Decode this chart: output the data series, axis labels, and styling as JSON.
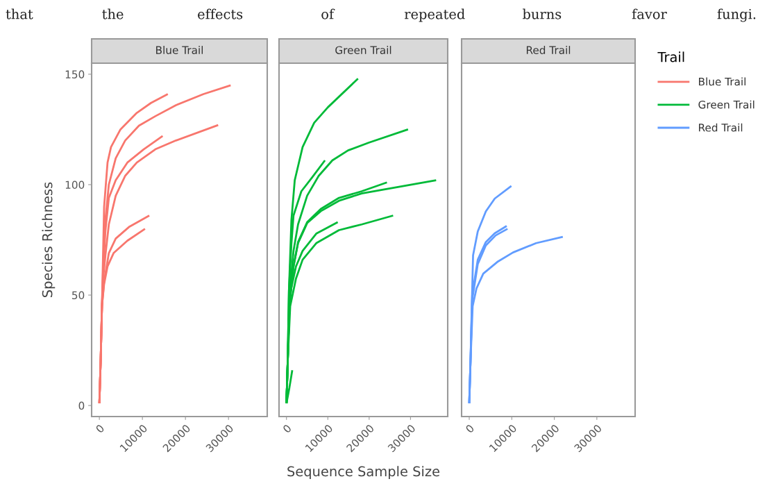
{
  "chart_data": [
    {
      "type": "line",
      "title": "Blue Trail",
      "ylabel": "Species Richness",
      "annotations": [
        "that the effects of repeated burns favor fungi."
      ],
      "xlim": [
        -1800,
        39000
      ],
      "ylim": [
        -5,
        155
      ],
      "xticks": [
        0,
        10000,
        20000,
        30000
      ],
      "yticks": [
        0,
        50,
        100,
        150
      ],
      "series": [
        {
          "name": "Blue Trail",
          "color": "#f8766d",
          "x": [
            0,
            300,
            600,
            1100,
            1900,
            2700,
            4900,
            8700,
            12000,
            15900
          ],
          "values": [
            1,
            20,
            45,
            90,
            110,
            117,
            125,
            132.5,
            137,
            141
          ]
        },
        {
          "color": "#f8766d",
          "x": [
            0,
            300,
            600,
            1000,
            1400,
            2200,
            3800,
            6000,
            9200,
            13000,
            17800,
            24200,
            30500
          ],
          "values": [
            1,
            20,
            45,
            70,
            84,
            100,
            112,
            120,
            126.7,
            131,
            136,
            141,
            145
          ]
        },
        {
          "color": "#f8766d",
          "x": [
            0,
            300,
            600,
            1000,
            1400,
            2200,
            3800,
            6000,
            8700,
            13000,
            17800,
            27600
          ],
          "values": [
            1,
            20,
            45,
            60,
            68,
            82,
            95,
            104,
            110,
            116,
            120,
            127
          ]
        },
        {
          "color": "#f8766d",
          "x": [
            0,
            300,
            600,
            1000,
            1400,
            2200,
            3800,
            6500,
            10300,
            14700
          ],
          "values": [
            1,
            20,
            45,
            65,
            79,
            94,
            102,
            110,
            116,
            122
          ]
        },
        {
          "color": "#f8766d",
          "x": [
            0,
            300,
            600,
            1100,
            2200,
            3800,
            7000,
            11600
          ],
          "values": [
            1,
            20,
            45,
            56,
            69,
            75.6,
            81,
            86
          ]
        },
        {
          "color": "#f8766d",
          "x": [
            0,
            300,
            600,
            1100,
            1900,
            3300,
            6500,
            10600
          ],
          "values": [
            1,
            20,
            45,
            55,
            63,
            69,
            74.6,
            80
          ]
        }
      ]
    },
    {
      "type": "line",
      "title": "Green Trail",
      "xlabel": "Sequence Sample Size",
      "tick_labels": "x",
      "xlim": [
        -1800,
        39000
      ],
      "ylim": [
        -5,
        155
      ],
      "xticks": [
        0,
        10000,
        20000,
        30000
      ],
      "yticks": [
        0,
        50,
        100,
        150
      ],
      "series": [
        {
          "name": "Green Trail",
          "color": "#00ba38",
          "x": [
            0,
            300,
            600,
            1200,
            2000,
            3900,
            6700,
            10000,
            17300
          ],
          "values": [
            1,
            20,
            52,
            84,
            102,
            117,
            128,
            135,
            148
          ]
        },
        {
          "color": "#00ba38",
          "x": [
            0,
            300,
            700,
            1700,
            2800,
            5000,
            7800,
            11100,
            14900,
            19900,
            29400
          ],
          "values": [
            1,
            20,
            50,
            70,
            82,
            95,
            104,
            111,
            115.5,
            119,
            125
          ]
        },
        {
          "color": "#00ba38",
          "x": [
            0,
            300,
            600,
            1200,
            1700,
            3600,
            6100,
            9300
          ],
          "values": [
            1,
            20,
            52,
            73.5,
            86,
            97,
            103,
            111
          ]
        },
        {
          "color": "#00ba38",
          "x": [
            0,
            300,
            700,
            1700,
            2800,
            5000,
            8300,
            12700,
            18200,
            36200
          ],
          "values": [
            1,
            20,
            45,
            63,
            73.5,
            82.6,
            88,
            92.7,
            96,
            102
          ]
        },
        {
          "color": "#00ba38",
          "x": [
            0,
            300,
            700,
            1700,
            2800,
            5000,
            8300,
            12700,
            18200,
            24300
          ],
          "values": [
            1,
            20,
            45,
            63,
            74,
            83,
            89,
            94,
            97,
            101
          ]
        },
        {
          "color": "#00ba38",
          "x": [
            0,
            300,
            800,
            2300,
            3900,
            7200,
            12400
          ],
          "values": [
            1,
            20,
            50,
            63,
            70,
            77.8,
            83
          ]
        },
        {
          "color": "#00ba38",
          "x": [
            0,
            300,
            900,
            2300,
            3900,
            7200,
            12700,
            18200,
            25800
          ],
          "values": [
            1,
            20,
            45,
            57.5,
            66,
            73.5,
            79.4,
            82,
            86
          ]
        },
        {
          "color": "#00ba38",
          "x": [
            0,
            700,
            1400
          ],
          "values": [
            1,
            8,
            16
          ]
        }
      ]
    },
    {
      "type": "line",
      "title": "Red Trail",
      "legend": "right",
      "legend_title": "Trail",
      "tick_labels": "x",
      "xlim": [
        -1800,
        39000
      ],
      "ylim": [
        -5,
        155
      ],
      "xticks": [
        0,
        10000,
        20000,
        30000
      ],
      "yticks": [
        0,
        50,
        100,
        150
      ],
      "series": [
        {
          "name": "Red Trail",
          "color": "#619cff",
          "x": [
            0,
            300,
            600,
            900,
            2000,
            3900,
            6000,
            9900
          ],
          "values": [
            1,
            20,
            45,
            68,
            78.8,
            87.9,
            93.7,
            99.4
          ]
        },
        {
          "color": "#619cff",
          "x": [
            0,
            300,
            700,
            2000,
            3900,
            6000,
            8800
          ],
          "values": [
            1,
            20,
            50,
            66,
            74,
            78,
            81.3
          ]
        },
        {
          "color": "#619cff",
          "x": [
            0,
            300,
            700,
            2000,
            3900,
            6200,
            9000
          ],
          "values": [
            1,
            20,
            48,
            64,
            72.5,
            77,
            80
          ]
        },
        {
          "color": "#619cff",
          "x": [
            0,
            300,
            800,
            1700,
            3300,
            6600,
            10300,
            15700,
            22000
          ],
          "values": [
            1,
            20,
            45,
            53,
            59.7,
            65,
            69.3,
            73.5,
            76.4
          ]
        }
      ]
    }
  ]
}
